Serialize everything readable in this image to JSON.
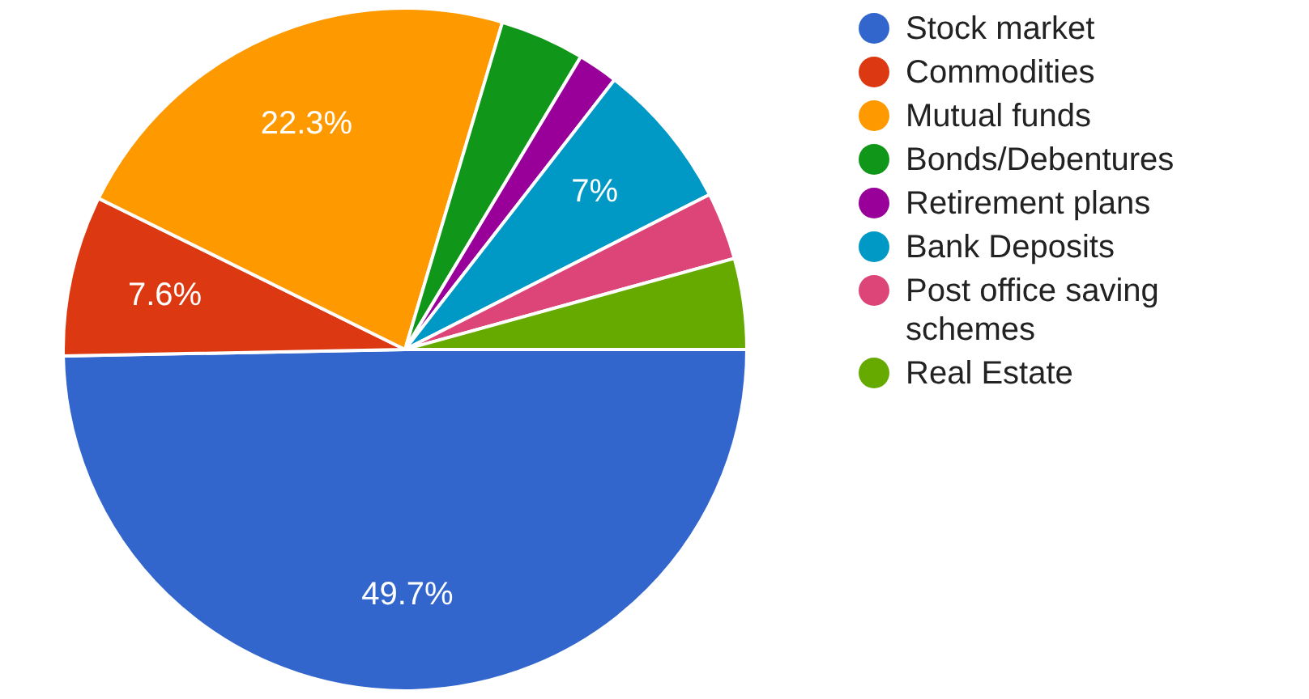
{
  "chart_data": {
    "type": "pie",
    "categories": [
      "Stock market",
      "Commodities",
      "Mutual funds",
      "Bonds/Debentures",
      "Retirement plans",
      "Bank Deposits",
      "Post office saving schemes",
      "Real Estate"
    ],
    "values": [
      49.7,
      7.6,
      22.3,
      4,
      1.9,
      7,
      3.2,
      4.3
    ],
    "value_labels": [
      "49.7%",
      "7.6%",
      "22.3%",
      null,
      null,
      "7%",
      null,
      null
    ],
    "colors": [
      "#3366cc",
      "#dc3912",
      "#ff9900",
      "#109618",
      "#990099",
      "#0099c6",
      "#dd4477",
      "#66aa00"
    ],
    "legend": "right"
  }
}
